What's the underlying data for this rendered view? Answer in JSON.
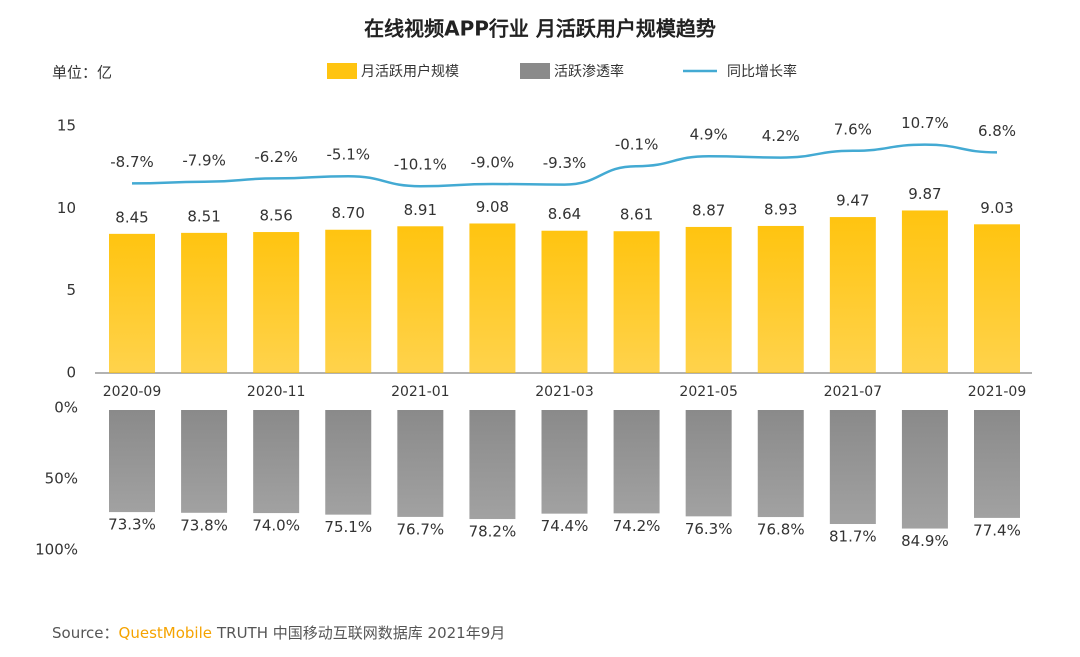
{
  "chart_data": [
    {
      "type": "bar",
      "title": "在线视频APP行业 月活跃用户规模趋势",
      "unit_label": "单位：亿",
      "categories": [
        "2020-09",
        null,
        "2020-11",
        null,
        "2021-01",
        null,
        "2021-03",
        null,
        "2021-05",
        null,
        "2021-07",
        null,
        "2021-09"
      ],
      "series": [
        {
          "name": "月活跃用户规模",
          "type": "bar",
          "color": "#FFC410",
          "values": [
            8.45,
            8.51,
            8.56,
            8.7,
            8.91,
            9.08,
            8.64,
            8.61,
            8.87,
            8.93,
            9.47,
            9.87,
            9.03
          ],
          "value_labels": [
            "8.45",
            "8.51",
            "8.56",
            "8.70",
            "8.91",
            "9.08",
            "8.64",
            "8.61",
            "8.87",
            "8.93",
            "9.47",
            "9.87",
            "9.03"
          ]
        },
        {
          "name": "同比增长率",
          "type": "line",
          "color": "#43AAD3",
          "values": [
            -8.7,
            -7.9,
            -6.2,
            -5.1,
            -10.1,
            -9.0,
            -9.3,
            -0.1,
            4.9,
            4.2,
            7.6,
            10.7,
            6.8
          ],
          "value_labels": [
            "-8.7%",
            "-7.9%",
            "-6.2%",
            "-5.1%",
            "-10.1%",
            "-9.0%",
            "-9.3%",
            "-0.1%",
            "4.9%",
            "4.2%",
            "7.6%",
            "10.7%",
            "6.8%"
          ]
        }
      ],
      "ylim": [
        0,
        15
      ],
      "yticks": [
        0,
        5,
        10,
        15
      ]
    },
    {
      "type": "bar",
      "inverted": true,
      "series": [
        {
          "name": "活跃渗透率",
          "type": "bar",
          "color": "#8A8A8A",
          "values": [
            73.3,
            73.8,
            74.0,
            75.1,
            76.7,
            78.2,
            74.4,
            74.2,
            76.3,
            76.8,
            81.7,
            84.9,
            77.4
          ],
          "value_labels": [
            "73.3%",
            "73.8%",
            "74.0%",
            "75.1%",
            "76.7%",
            "78.2%",
            "74.4%",
            "74.2%",
            "76.3%",
            "76.8%",
            "81.7%",
            "84.9%",
            "77.4%"
          ]
        }
      ],
      "ylim": [
        0,
        100
      ],
      "yticks": [
        {
          "value": 0,
          "label": "0%"
        },
        {
          "value": 50,
          "label": "50%"
        },
        {
          "value": 100,
          "label": "100%"
        }
      ]
    }
  ],
  "footer": {
    "source_label": "Source：",
    "source_brand": "QuestMobile",
    "source_text": "TRUTH 中国移动互联网数据库 2021年9月"
  }
}
